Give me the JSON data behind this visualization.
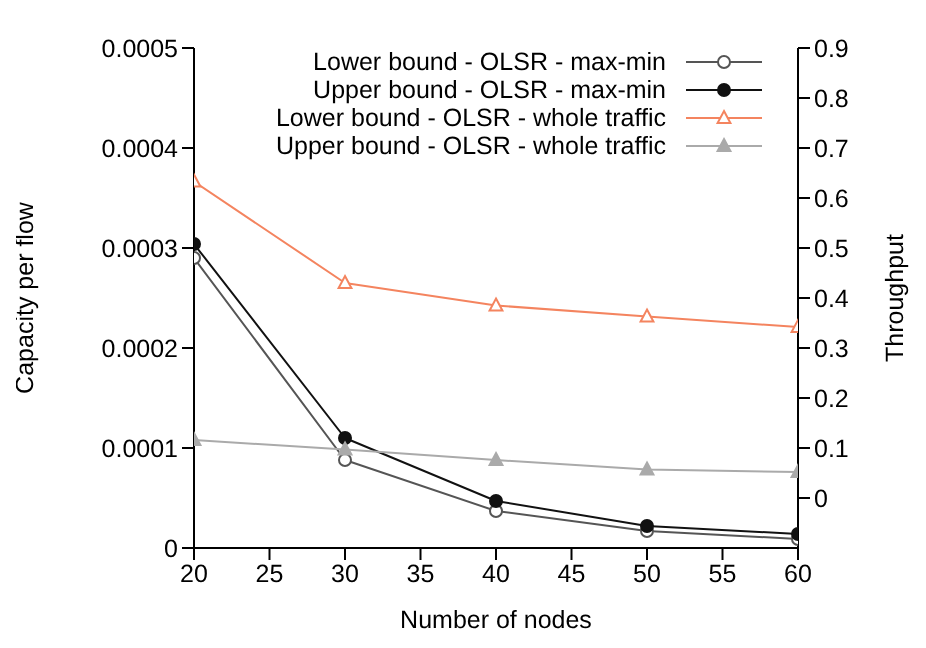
{
  "chart_data": {
    "type": "line",
    "xlabel": "Number of nodes",
    "ylabel": "Capacity per flow",
    "y2label": "Throughput",
    "x": [
      20,
      30,
      40,
      50,
      60
    ],
    "series": [
      {
        "name": "Lower bound - OLSR - max-min",
        "color": "#555555",
        "marker": "circle",
        "values": [
          0.00029,
          8.8e-05,
          3.7e-05,
          1.7e-05,
          9e-06
        ]
      },
      {
        "name": "Upper bound - OLSR - max-min",
        "color": "#111111",
        "marker": "circle",
        "values": [
          0.000304,
          0.00011,
          4.7e-05,
          2.2e-05,
          1.4e-05
        ]
      },
      {
        "name": "Lower bound - OLSR - whole traffic",
        "color": "#f4845f",
        "marker": "triangle",
        "axis": "y2",
        "values": [
          0.633,
          0.43,
          0.385,
          0.363,
          0.342
        ]
      },
      {
        "name": "Upper bound - OLSR - whole traffic",
        "color": "#aaaaaa",
        "marker": "triangle",
        "axis": "y2",
        "values": [
          0.116,
          0.097,
          0.076,
          0.057,
          0.052
        ]
      }
    ],
    "xlim": [
      20,
      60
    ],
    "xticks": [
      20,
      25,
      30,
      35,
      40,
      45,
      50,
      55,
      60
    ],
    "ylim": [
      0,
      0.0005
    ],
    "yticks": [
      0,
      0.0001,
      0.0002,
      0.0003,
      0.0004,
      0.0005
    ],
    "y2lim": [
      -0.1,
      0.9
    ],
    "y2ticks": [
      0,
      0.1,
      0.2,
      0.3,
      0.4,
      0.5,
      0.6,
      0.7,
      0.8,
      0.9
    ],
    "grid": false,
    "legend": "top right",
    "line_style": "solid"
  }
}
